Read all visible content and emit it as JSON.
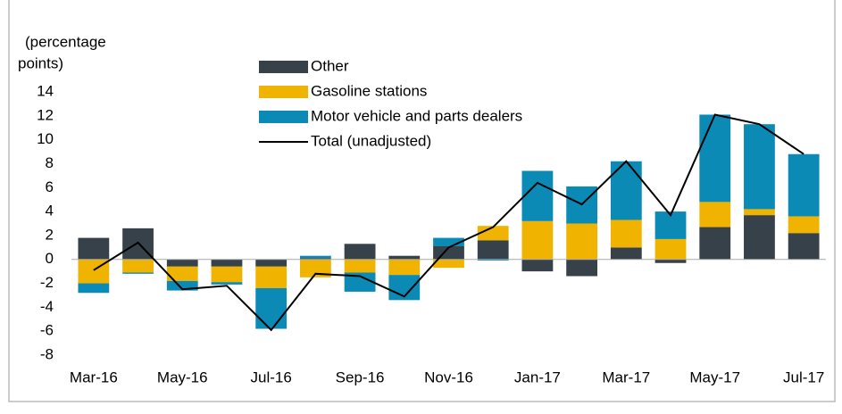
{
  "chart_data": {
    "type": "bar",
    "stacked": true,
    "y_label": [
      "(percentage",
      "points)"
    ],
    "categories": [
      "Mar-16",
      null,
      "May-16",
      null,
      "Jul-16",
      null,
      "Sep-16",
      null,
      "Nov-16",
      null,
      "Jan-17",
      null,
      "Mar-17",
      null,
      "May-17",
      null,
      "Jul-17"
    ],
    "series": [
      {
        "name": "Other",
        "color": "#37414a",
        "values": [
          1.8,
          2.6,
          -0.6,
          -0.6,
          -0.6,
          0.1,
          1.3,
          0.3,
          1.1,
          1.6,
          -1.0,
          -1.4,
          1.0,
          -0.3,
          2.7,
          3.7,
          2.2
        ]
      },
      {
        "name": "Gasoline stations",
        "color": "#f0b400",
        "values": [
          -2.0,
          -1.1,
          -1.2,
          -1.3,
          -1.8,
          -1.5,
          -1.1,
          -1.3,
          -0.7,
          1.2,
          3.2,
          3.0,
          2.3,
          1.7,
          2.1,
          0.5,
          1.4
        ]
      },
      {
        "name": "Motor vehicle and parts dealers",
        "color": "#0a8ab5",
        "values": [
          -0.8,
          -0.1,
          -0.8,
          -0.2,
          -3.4,
          0.2,
          -1.6,
          -2.1,
          0.7,
          -0.1,
          4.2,
          3.1,
          4.9,
          2.3,
          7.3,
          7.1,
          5.2
        ]
      },
      {
        "name": "Total (unadjusted)",
        "type": "line",
        "color": "#000000",
        "values": [
          -0.9,
          1.4,
          -2.5,
          -2.2,
          -5.9,
          -1.2,
          -1.4,
          -3.1,
          1.0,
          2.7,
          6.4,
          4.6,
          8.2,
          3.7,
          12.1,
          11.3,
          8.8
        ]
      }
    ],
    "ylim": [
      -8,
      14
    ],
    "yticks": [
      -8,
      -6,
      -4,
      -2,
      0,
      2,
      4,
      6,
      8,
      10,
      12,
      14
    ],
    "grid": false,
    "legend": "top-left"
  }
}
